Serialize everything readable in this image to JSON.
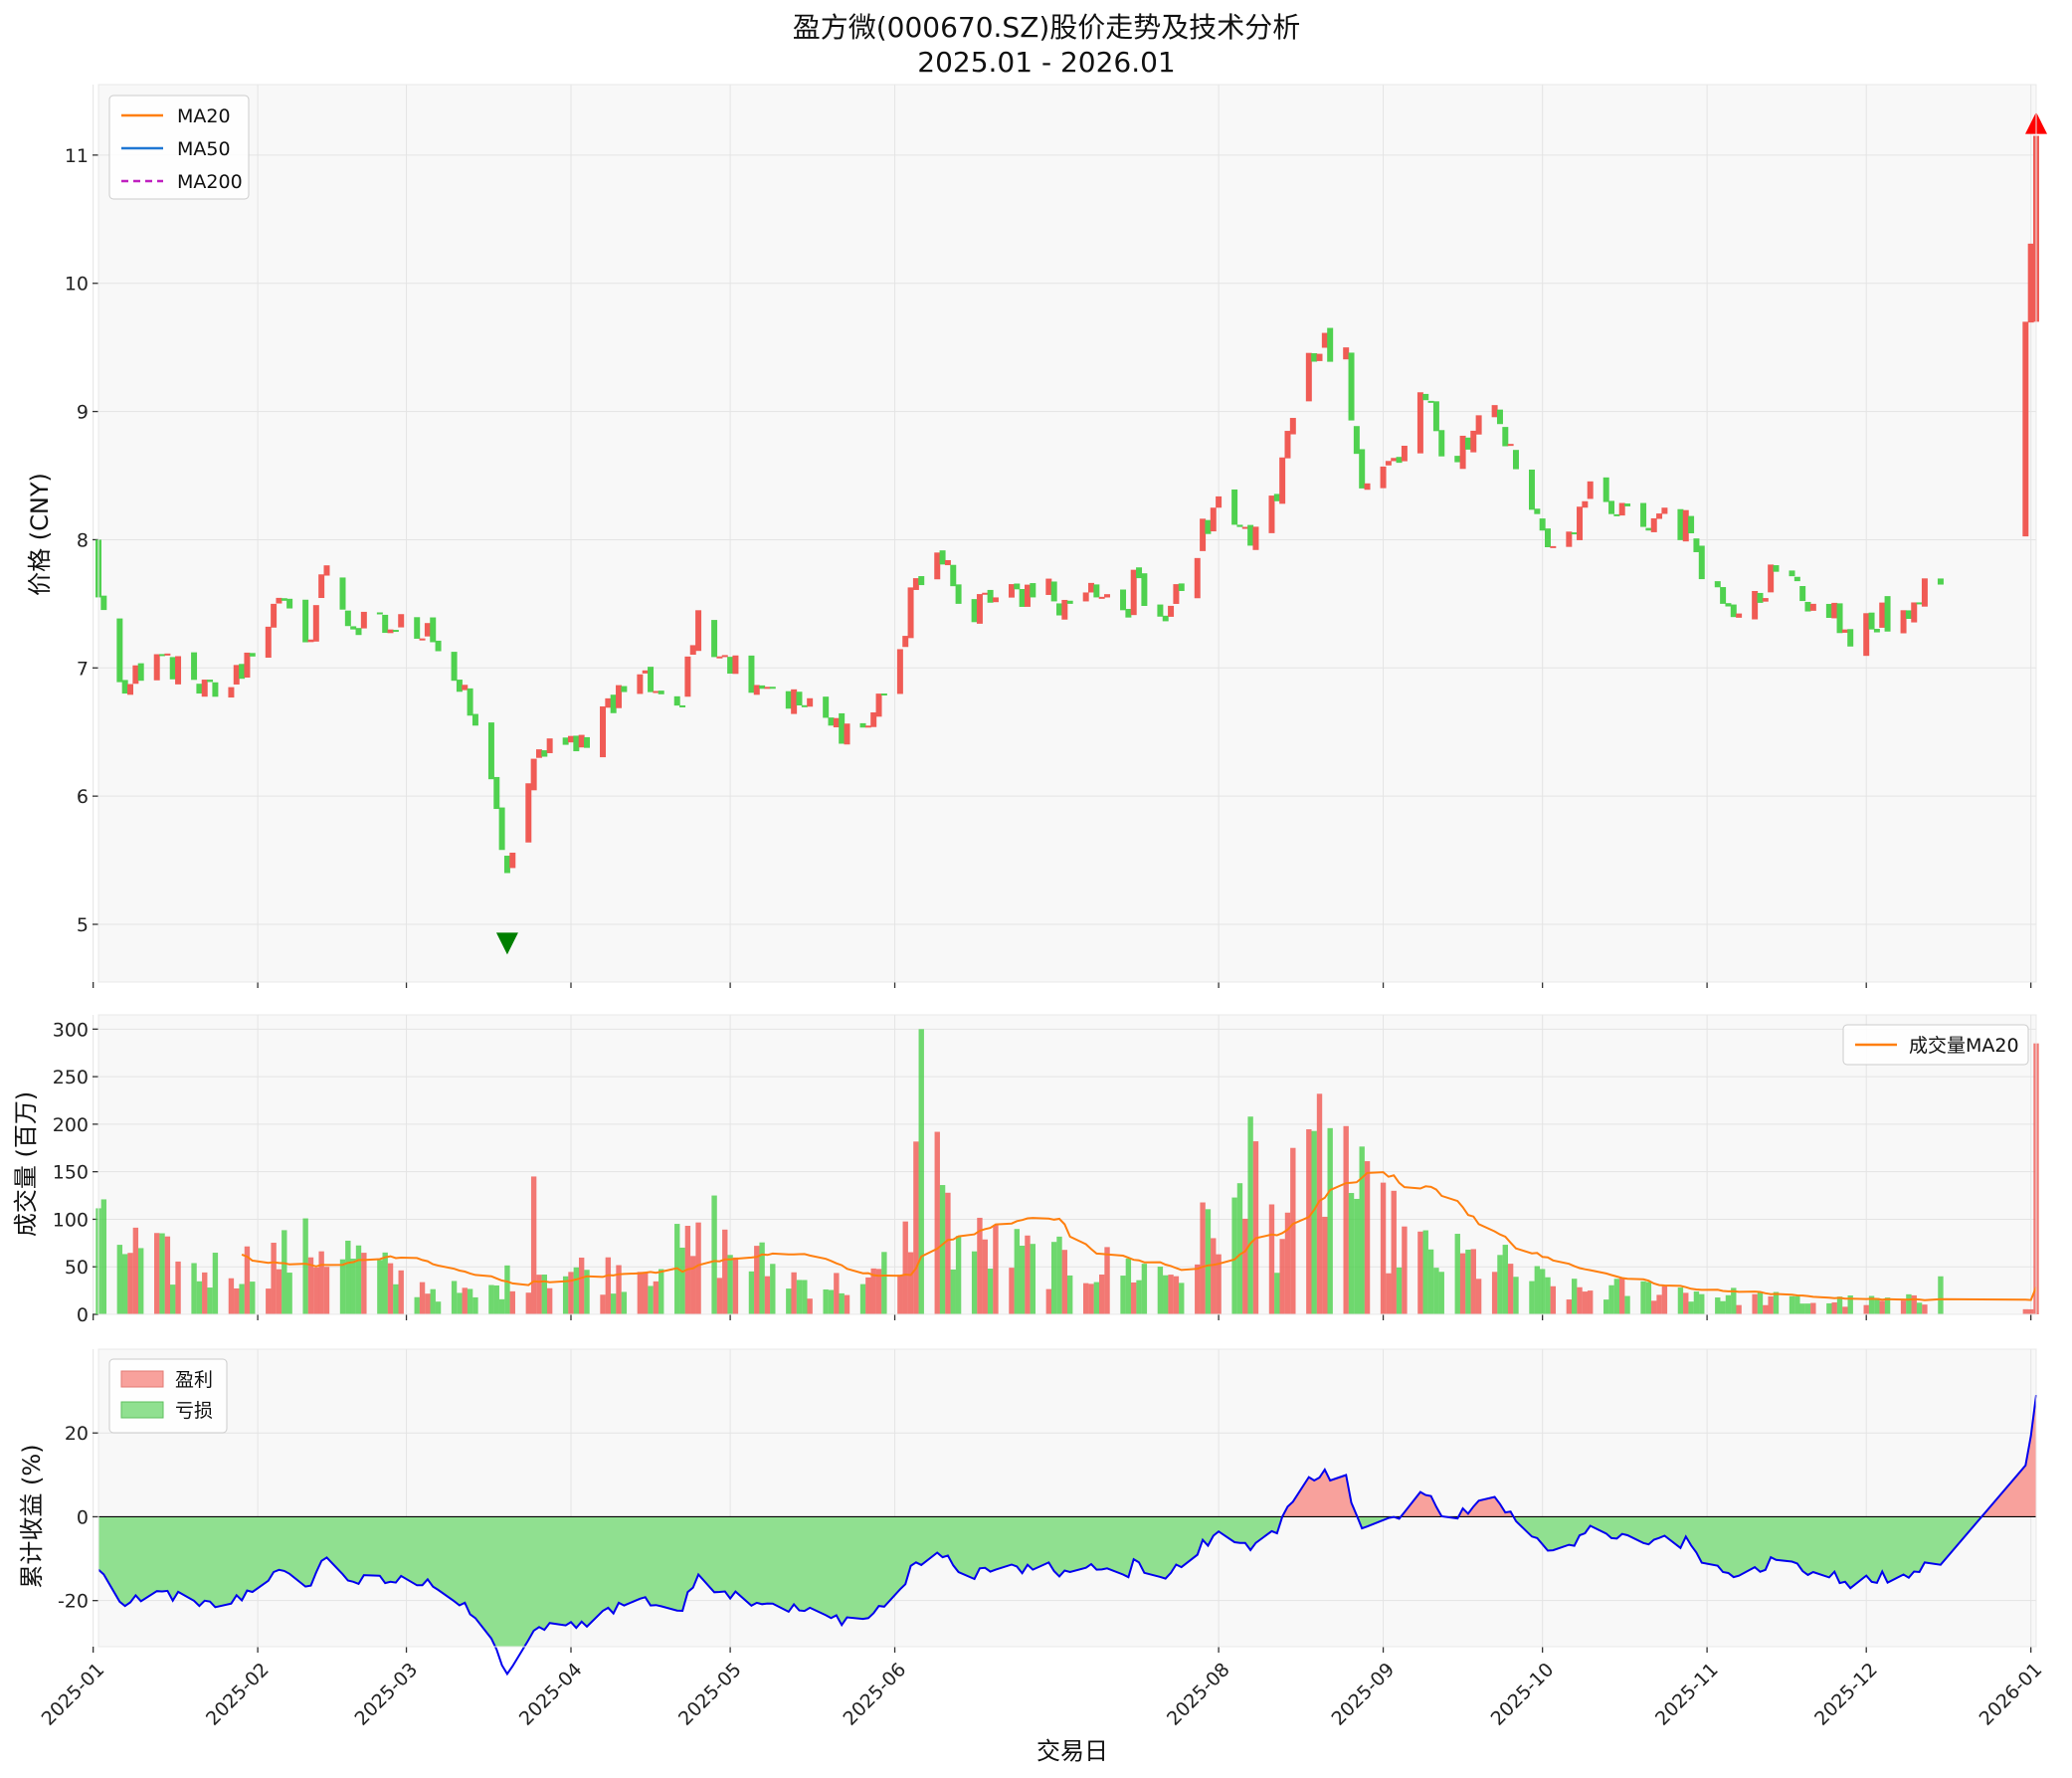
{
  "chart_data": {
    "type": "candlestick-with-volume-and-cumulative-return",
    "title": "盈方微(000670.SZ)股价走势及技术分析",
    "subtitle": "2025.01 - 2026.01",
    "xlabel": "交易日",
    "x_ticks": [
      "2025-01",
      "2025-02",
      "2025-03",
      "2025-04",
      "2025-05",
      "2025-06",
      "2025-08",
      "2025-09",
      "2025-10",
      "2025-11",
      "2025-12",
      "2026-01"
    ],
    "colors": {
      "up": "#f05b55",
      "down": "#4fd14f",
      "ma20": "#ff7f0e",
      "ma50": "#1f77d4",
      "ma200": "#c020c0",
      "buy": "#007f00",
      "sell": "#ff0000",
      "cum_line": "#0000ee",
      "profit_fill": "#f8a19c",
      "loss_fill": "#90e090",
      "panel_bg": "#f8f8f8",
      "grid": "#e4e4e4"
    },
    "price_panel": {
      "ylabel": "价格 (CNY)",
      "ylim": [
        4.55,
        11.55
      ],
      "yticks": [
        5,
        6,
        7,
        8,
        9,
        10,
        11
      ],
      "legend": [
        "MA20",
        "MA50",
        "MA200"
      ],
      "legend_position": "upper-left",
      "anchors": [
        [
          "2025-01-02",
          7.55
        ],
        [
          "2025-01-07",
          6.8
        ],
        [
          "2025-01-10",
          6.9
        ],
        [
          "2025-01-14",
          7.1
        ],
        [
          "2025-01-21",
          6.8
        ],
        [
          "2025-01-27",
          6.85
        ],
        [
          "2025-02-04",
          7.5
        ],
        [
          "2025-02-10",
          7.2
        ],
        [
          "2025-02-14",
          7.8
        ],
        [
          "2025-02-19",
          7.3
        ],
        [
          "2025-02-26",
          7.3
        ],
        [
          "2025-03-05",
          7.35
        ],
        [
          "2025-03-10",
          6.9
        ],
        [
          "2025-03-14",
          6.55
        ],
        [
          "2025-03-18",
          5.9
        ],
        [
          "2025-03-20",
          5.4
        ],
        [
          "2025-03-24",
          6.1
        ],
        [
          "2025-03-28",
          6.45
        ],
        [
          "2025-04-02",
          6.35
        ],
        [
          "2025-04-07",
          6.7
        ],
        [
          "2025-04-14",
          6.95
        ],
        [
          "2025-04-22",
          6.7
        ],
        [
          "2025-04-25",
          7.45
        ],
        [
          "2025-04-30",
          7.1
        ],
        [
          "2025-05-09",
          6.85
        ],
        [
          "2025-05-20",
          6.55
        ],
        [
          "2025-05-27",
          6.55
        ],
        [
          "2025-06-03",
          7.25
        ],
        [
          "2025-06-05",
          7.7
        ],
        [
          "2025-06-09",
          7.9
        ],
        [
          "2025-06-13",
          7.5
        ],
        [
          "2025-06-20",
          7.55
        ],
        [
          "2025-06-27",
          7.55
        ],
        [
          "2025-07-04",
          7.5
        ],
        [
          "2025-07-09",
          7.55
        ],
        [
          "2025-07-14",
          7.45
        ],
        [
          "2025-07-17",
          7.7
        ],
        [
          "2025-07-21",
          7.4
        ],
        [
          "2025-07-25",
          7.6
        ],
        [
          "2025-07-31",
          8.25
        ],
        [
          "2025-08-06",
          8.1
        ],
        [
          "2025-08-12",
          8.3
        ],
        [
          "2025-08-15",
          8.95
        ],
        [
          "2025-08-20",
          9.45
        ],
        [
          "2025-08-25",
          9.5
        ],
        [
          "2025-08-28",
          8.4
        ],
        [
          "2025-09-04",
          8.6
        ],
        [
          "2025-09-08",
          9.15
        ],
        [
          "2025-09-12",
          8.65
        ],
        [
          "2025-09-18",
          8.85
        ],
        [
          "2025-09-22",
          9.05
        ],
        [
          "2025-09-26",
          8.55
        ],
        [
          "2025-09-30",
          8.2
        ],
        [
          "2025-10-03",
          7.95
        ],
        [
          "2025-10-09",
          8.3
        ],
        [
          "2025-10-14",
          8.2
        ],
        [
          "2025-10-20",
          8.1
        ],
        [
          "2025-10-24",
          8.25
        ],
        [
          "2025-10-29",
          8.05
        ],
        [
          "2025-11-04",
          7.5
        ],
        [
          "2025-11-10",
          7.6
        ],
        [
          "2025-11-14",
          7.75
        ],
        [
          "2025-11-21",
          7.5
        ],
        [
          "2025-11-27",
          7.3
        ],
        [
          "2025-12-02",
          7.3
        ],
        [
          "2025-12-08",
          7.45
        ],
        [
          "2025-12-11",
          7.5
        ],
        [
          "2025-12-15",
          7.65
        ],
        [
          "2025-12-31",
          9.7
        ],
        [
          "2026-01-02",
          11.15
        ]
      ],
      "gaps": [
        [
          "2025-12-16",
          "2025-12-30"
        ]
      ],
      "buy_marker": {
        "date": "2025-03-20",
        "value": 4.85
      },
      "sell_marker": {
        "date": "2026-01-02",
        "value": 11.25
      }
    },
    "volume_panel": {
      "ylabel": "成交量 (百万)",
      "ylim": [
        0,
        315
      ],
      "yticks": [
        0,
        50,
        100,
        150,
        200,
        250,
        300
      ],
      "legend": [
        "成交量MA20"
      ],
      "legend_position": "upper-right",
      "anchors": [
        [
          "2025-01-02",
          85
        ],
        [
          "2025-01-20",
          45
        ],
        [
          "2025-01-31",
          55
        ],
        [
          "2025-02-14",
          75
        ],
        [
          "2025-03-01",
          35
        ],
        [
          "2025-03-15",
          18
        ],
        [
          "2025-03-24",
          50
        ],
        [
          "2025-04-08",
          45
        ],
        [
          "2025-04-28",
          75
        ],
        [
          "2025-05-15",
          35
        ],
        [
          "2025-05-27",
          30
        ],
        [
          "2025-06-03",
          75
        ],
        [
          "2025-06-06",
          200
        ],
        [
          "2025-06-12",
          80
        ],
        [
          "2025-07-01",
          55
        ],
        [
          "2025-07-25",
          45
        ],
        [
          "2025-08-01",
          110
        ],
        [
          "2025-08-12",
          95
        ],
        [
          "2025-08-22",
          170
        ],
        [
          "2025-08-29",
          110
        ],
        [
          "2025-09-10",
          60
        ],
        [
          "2025-09-22",
          55
        ],
        [
          "2025-10-05",
          25
        ],
        [
          "2025-10-24",
          28
        ],
        [
          "2025-11-05",
          20
        ],
        [
          "2025-11-20",
          14
        ],
        [
          "2025-12-05",
          14
        ],
        [
          "2025-12-15",
          15
        ],
        [
          "2025-12-31",
          10
        ]
      ],
      "spikes": [
        [
          "2025-03-25",
          145
        ],
        [
          "2025-04-28",
          125
        ],
        [
          "2025-06-06",
          300
        ],
        [
          "2025-06-09",
          192
        ],
        [
          "2025-06-10",
          136
        ],
        [
          "2025-08-07",
          208
        ],
        [
          "2025-08-08",
          182
        ],
        [
          "2025-08-20",
          232
        ],
        [
          "2025-08-25",
          198
        ],
        [
          "2025-12-15",
          40
        ],
        [
          "2026-01-02",
          285
        ]
      ]
    },
    "return_panel": {
      "ylabel": "累计收益 (%)",
      "ylim": [
        -31,
        40
      ],
      "yticks": [
        -20,
        0,
        20
      ],
      "legend": [
        "盈利",
        "亏损"
      ],
      "legend_position": "upper-left",
      "baseline": 0
    }
  }
}
